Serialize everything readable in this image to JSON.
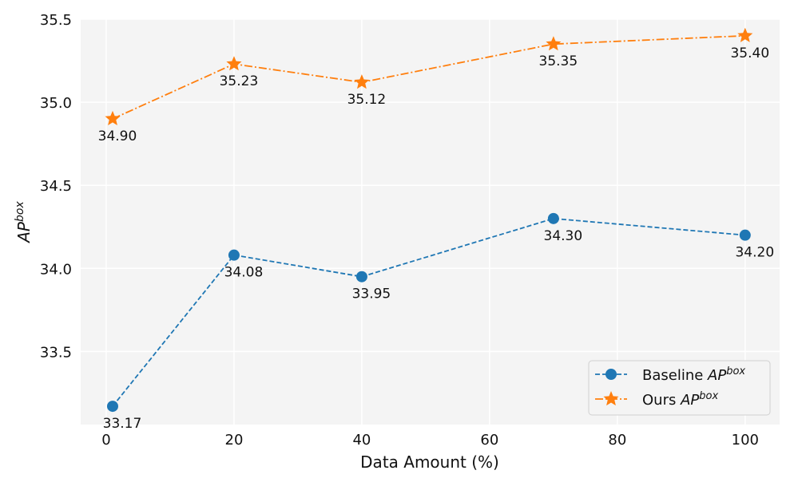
{
  "chart_data": {
    "type": "line",
    "title": "",
    "xlabel": "Data Amount (%)",
    "ylabel": {
      "base": "AP",
      "sup": "box"
    },
    "xlim": [
      -4,
      105.4
    ],
    "ylim": [
      33.06,
      35.5
    ],
    "xticks": [
      0,
      20,
      40,
      60,
      80,
      100
    ],
    "yticks": [
      33.5,
      34.0,
      34.5,
      35.0,
      35.5
    ],
    "ytick_labels": [
      "33.5",
      "34.0",
      "34.5",
      "35.0",
      "35.5"
    ],
    "grid": true,
    "background": "#f4f4f4",
    "legend_position": "bottom-right",
    "series": [
      {
        "name": "Baseline",
        "name_sup_base": "AP",
        "name_sup": "box",
        "color": "#1f77b4",
        "marker": "circle",
        "linestyle": "dashed",
        "x": [
          1,
          20,
          40,
          70,
          100
        ],
        "values": [
          33.17,
          34.08,
          33.95,
          34.3,
          34.2
        ],
        "labels": [
          "33.17",
          "34.08",
          "33.95",
          "34.30",
          "34.20"
        ]
      },
      {
        "name": "Ours",
        "name_sup_base": "AP",
        "name_sup": "box",
        "color": "#ff7f0e",
        "marker": "star",
        "linestyle": "dashdot",
        "x": [
          1,
          20,
          40,
          70,
          100
        ],
        "values": [
          34.9,
          35.23,
          35.12,
          35.35,
          35.4
        ],
        "labels": [
          "34.90",
          "35.23",
          "35.12",
          "35.35",
          "35.40"
        ]
      }
    ]
  }
}
